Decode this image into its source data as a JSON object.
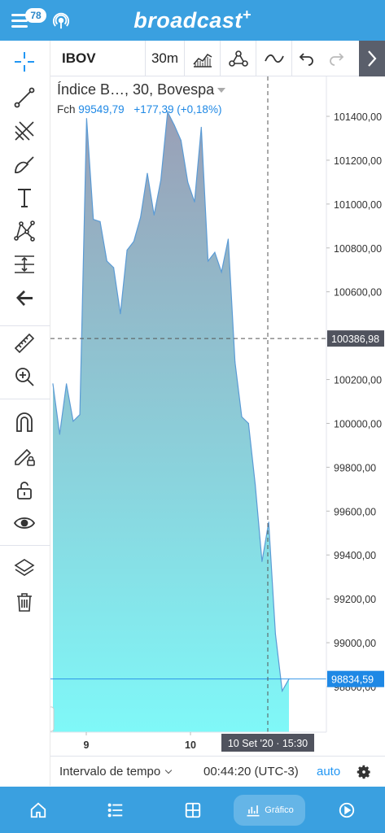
{
  "header": {
    "brand": "broadcast",
    "brand_plus": "+",
    "badge_count": "78",
    "color": "#3aa0e0"
  },
  "toolbar": {
    "symbol": "IBOV",
    "interval": "30m"
  },
  "legend": {
    "title": "Índice B…, 30, Bovespa",
    "close_label": "Fch",
    "close_value": "99549,79",
    "change": "+177,39 (+0,18%)"
  },
  "price_axis": {
    "ticks": [
      "101400,00",
      "101200,00",
      "101000,00",
      "100800,00",
      "100600,00",
      "100200,00",
      "100000,00",
      "99800,00",
      "99600,00",
      "99400,00",
      "99200,00",
      "99000,00",
      "98800,00"
    ],
    "crosshair_label": "100386,98",
    "last_price_label": "98834,59"
  },
  "time_axis": {
    "ticks": [
      "9",
      "10"
    ],
    "crosshair_label": "10 Set '20 · 15:30",
    "partial_tick": "0"
  },
  "chart_data": {
    "type": "area",
    "x_categories_visible": [
      "9",
      "10"
    ],
    "y_range": [
      98700,
      101520
    ],
    "values": [
      100180,
      99950,
      100180,
      100010,
      100040,
      101390,
      100930,
      100920,
      100740,
      100710,
      100500,
      100790,
      100830,
      100940,
      101140,
      100950,
      101110,
      101420,
      101360,
      101290,
      101100,
      101010,
      101350,
      100740,
      100780,
      100690,
      100840,
      100280,
      100030,
      100000,
      99720,
      99370,
      99550,
      99040,
      98780,
      98834.59
    ],
    "line_color": "#5b9bd5",
    "fill_top": "#9a9fb6",
    "fill_bottom": "#7ff8f8",
    "crosshair_price": 100386.98,
    "crosshair_time": "10 Set '20 · 15:30"
  },
  "infobar": {
    "range_label": "Intervalo de tempo",
    "time": "00:44:20 (UTC-3)",
    "auto": "auto"
  },
  "bottom_nav": {
    "active_label": "Gráfico"
  }
}
